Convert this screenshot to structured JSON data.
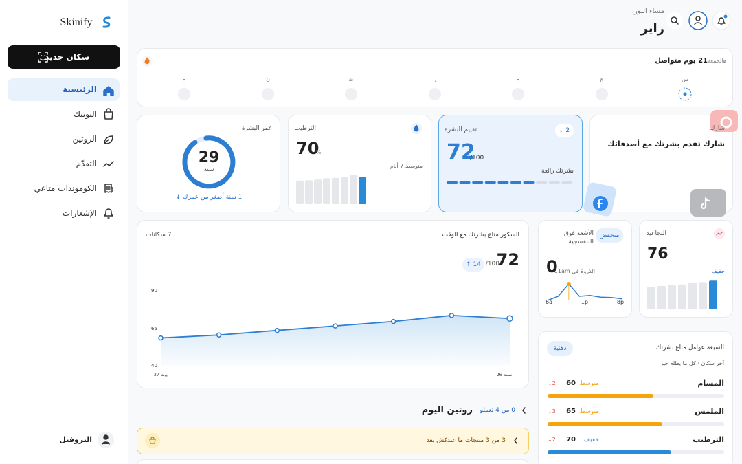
{
  "sidebar": {
    "logo": "Skinify",
    "new_scan": "سكان جديد",
    "nav": [
      "الرئيسية",
      "البوتيك",
      "الروتين",
      "التقدّم",
      "الكوموندات متاعي",
      "الإشعارات"
    ],
    "profile": "البروفيل"
  },
  "header": {
    "greeting": "مساء النور،",
    "name": "زاير"
  },
  "streak": {
    "title": "21 يوم متواصل",
    "period": "هالجمعة",
    "days": [
      "س",
      "ج",
      "خ",
      "ر",
      "ث",
      "ن",
      "ح"
    ]
  },
  "share": {
    "label": "شارك",
    "title": "شارك تقدم بشرتك مع أصدقائك"
  },
  "rating": {
    "title": "تقييم البشرة",
    "change": "↓ 2",
    "score": 72,
    "max_label": "/100",
    "status": "بشرتك رائعة"
  },
  "hydration": {
    "title": "الترطيب",
    "value": 70,
    "unit": "%",
    "note": "متوسط 7 أيام",
    "bars": [
      60,
      61,
      63,
      66,
      67,
      70,
      74,
      70
    ]
  },
  "skin_age": {
    "title": "عمر البشرة",
    "value": 29,
    "unit": "سنة",
    "note": "1 سنة أصغر من عمرك ↓"
  },
  "wrinkles": {
    "title": "التجاعيد",
    "value": 76,
    "level": "خفيف",
    "bars": [
      60,
      62,
      64,
      66,
      70,
      72,
      76
    ]
  },
  "uv": {
    "title": "الأشعة فوق البنفسجية",
    "level": "منخفض",
    "value": 0,
    "peak": "الذروة في 11am",
    "x_labels": [
      "6a",
      "1p",
      "8p"
    ],
    "curve": [
      0,
      1,
      4,
      1,
      1.2,
      0.8,
      0.7,
      0.4
    ]
  },
  "score_chart": {
    "title": "السكور متاع بشرتك مع الوقت",
    "scans": "7 سكانات",
    "score": 72,
    "max_label": "/100",
    "change": "↑ 14",
    "values": [
      59,
      61,
      64,
      67,
      70,
      74,
      72
    ],
    "ylim": [
      40,
      90
    ],
    "yticks": [
      40,
      65,
      90
    ],
    "x_labels": [
      "يوت 27",
      "سبت 26"
    ]
  },
  "factors": {
    "title": "السبعة عوامل متاع بشرتك",
    "subtitle": "آخر سكان · كل ما يطلع خير",
    "skin_type": "دهنية",
    "items": [
      {
        "name": "المسام",
        "value": 60,
        "level": "متوسط",
        "change": "↓2",
        "color": "#f5a50b"
      },
      {
        "name": "الملمس",
        "value": 65,
        "level": "متوسط",
        "change": "↓3",
        "color": "#f5a50b"
      },
      {
        "name": "الترطيب",
        "value": 70,
        "level": "خفيف",
        "change": "↓2",
        "color": "#2b8ad8"
      }
    ]
  },
  "routine": {
    "title": "روتين اليوم",
    "progress": "0 من 4 تعملو",
    "alert": "3 من 3 منتجات ما عندكش بعد"
  }
}
